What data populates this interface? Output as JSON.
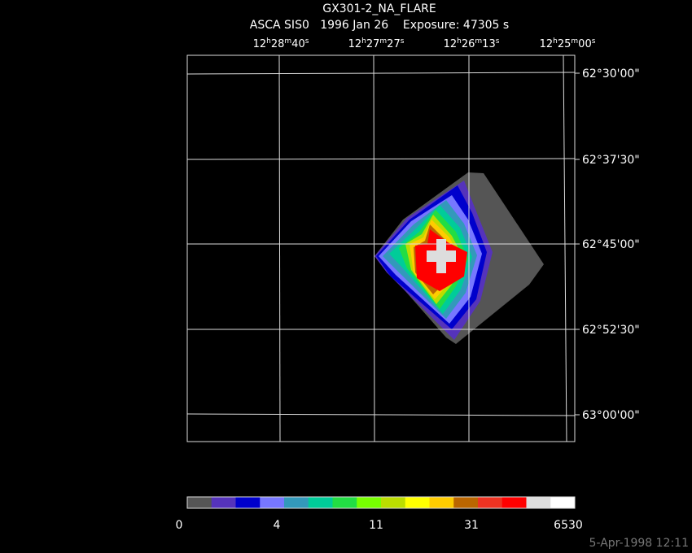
{
  "header": {
    "title": "GX301-2_NA_FLARE",
    "subtitle": "ASCA SIS0   1996 Jan 26    Exposure: 47305 s"
  },
  "ra_labels": [
    [
      "12",
      "h",
      "28",
      "m",
      "40",
      "s"
    ],
    [
      "12",
      "h",
      "27",
      "m",
      "27",
      "s"
    ],
    [
      "12",
      "h",
      "26",
      "m",
      "13",
      "s"
    ],
    [
      "12",
      "h",
      "25",
      "m",
      "00",
      "s"
    ]
  ],
  "dec_labels": [
    "62°30'00\"",
    "62°37'30\"",
    "62°45'00\"",
    "62°52'30\"",
    "63°00'00\""
  ],
  "colorbar": {
    "colors": [
      "#555555",
      "#5533bb",
      "#0000cc",
      "#7777ff",
      "#3399bb",
      "#00cc99",
      "#22dd44",
      "#77ff00",
      "#bbdd00",
      "#ffff00",
      "#ffcc00",
      "#bb6600",
      "#ee3322",
      "#ff0000",
      "#dddddd",
      "#ffffff"
    ],
    "labels": [
      "0",
      "4",
      "11",
      "31",
      "6530"
    ]
  },
  "footer": "5-Apr-1998 12:11"
}
